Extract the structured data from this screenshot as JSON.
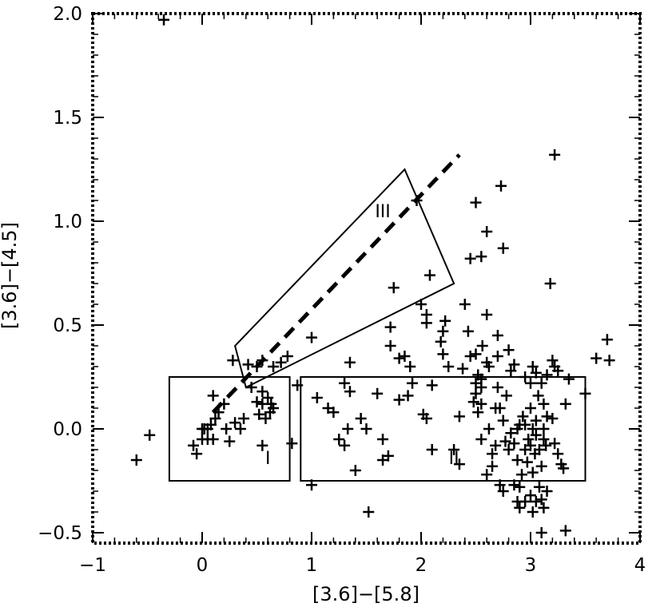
{
  "chart_data": {
    "type": "scatter",
    "title": "",
    "xlabel": "[3.6]−[5.8]",
    "ylabel": "[3.6]−[4.5]",
    "xlim": [
      -1,
      4
    ],
    "ylim": [
      -0.55,
      2.0
    ],
    "x_ticks": [
      -1,
      0,
      1,
      2,
      3,
      4
    ],
    "x_tick_labels": [
      "−1",
      "0",
      "1",
      "2",
      "3",
      "4"
    ],
    "y_ticks": [
      -0.5,
      0.0,
      0.5,
      1.0,
      1.5,
      2.0
    ],
    "y_tick_labels": [
      "−0.5",
      "0.0",
      "0.5",
      "1.0",
      "1.5",
      "2.0"
    ],
    "grid": false,
    "marker": "+",
    "regions": [
      {
        "label": "I",
        "shape": "rectangle",
        "x": [
          -0.3,
          0.8
        ],
        "y": [
          -0.25,
          0.25
        ],
        "label_at": [
          0.6,
          -0.17
        ]
      },
      {
        "label": "II",
        "shape": "rectangle",
        "x": [
          0.9,
          3.5
        ],
        "y": [
          -0.25,
          0.25
        ],
        "label_at": [
          2.3,
          -0.17
        ]
      },
      {
        "label": "III",
        "shape": "polygon",
        "points": [
          [
            0.3,
            0.4
          ],
          [
            0.4,
            0.2
          ],
          [
            2.3,
            0.7
          ],
          [
            1.85,
            1.25
          ]
        ],
        "label_at": [
          1.65,
          1.02
        ]
      }
    ],
    "dashed_line": {
      "x": [
        0.1,
        2.35
      ],
      "y": [
        0.08,
        1.32
      ]
    },
    "points": [
      [
        -0.35,
        1.97
      ],
      [
        -0.6,
        -0.15
      ],
      [
        -0.48,
        -0.03
      ],
      [
        -0.08,
        -0.08
      ],
      [
        -0.05,
        -0.12
      ],
      [
        0.0,
        -0.05
      ],
      [
        0.02,
        0.0
      ],
      [
        0.05,
        -0.05
      ],
      [
        0.08,
        0.02
      ],
      [
        0.0,
        0.0
      ],
      [
        0.05,
        0.0
      ],
      [
        0.1,
        -0.05
      ],
      [
        0.12,
        0.05
      ],
      [
        0.1,
        0.16
      ],
      [
        0.15,
        0.08
      ],
      [
        0.2,
        0.12
      ],
      [
        0.25,
        -0.06
      ],
      [
        0.22,
        0.0
      ],
      [
        0.28,
        0.33
      ],
      [
        0.3,
        0.03
      ],
      [
        0.35,
        0.0
      ],
      [
        0.38,
        0.05
      ],
      [
        0.42,
        0.31
      ],
      [
        0.45,
        0.2
      ],
      [
        0.5,
        0.13
      ],
      [
        0.55,
        0.18
      ],
      [
        0.55,
        0.12
      ],
      [
        0.6,
        0.15
      ],
      [
        0.62,
        0.08
      ],
      [
        0.65,
        0.1
      ],
      [
        0.58,
        0.05
      ],
      [
        0.63,
        0.12
      ],
      [
        0.52,
        0.07
      ],
      [
        0.55,
        -0.08
      ],
      [
        0.65,
        0.3
      ],
      [
        0.72,
        0.32
      ],
      [
        0.78,
        0.35
      ],
      [
        0.82,
        -0.07
      ],
      [
        0.87,
        0.21
      ],
      [
        0.5,
        0.3
      ],
      [
        0.55,
        0.33
      ],
      [
        1.0,
        0.44
      ],
      [
        1.05,
        0.15
      ],
      [
        1.0,
        -0.27
      ],
      [
        1.15,
        0.1
      ],
      [
        1.2,
        0.08
      ],
      [
        1.25,
        -0.05
      ],
      [
        1.3,
        -0.08
      ],
      [
        1.3,
        0.22
      ],
      [
        1.35,
        0.32
      ],
      [
        1.33,
        0.0
      ],
      [
        1.4,
        -0.2
      ],
      [
        1.45,
        0.05
      ],
      [
        1.5,
        0.0
      ],
      [
        1.52,
        -0.4
      ],
      [
        1.35,
        0.18
      ],
      [
        1.6,
        0.17
      ],
      [
        1.65,
        -0.05
      ],
      [
        1.65,
        -0.15
      ],
      [
        1.7,
        -0.13
      ],
      [
        1.72,
        0.49
      ],
      [
        1.72,
        0.4
      ],
      [
        1.75,
        0.68
      ],
      [
        1.8,
        0.14
      ],
      [
        1.8,
        0.34
      ],
      [
        1.85,
        0.35
      ],
      [
        1.88,
        0.16
      ],
      [
        1.9,
        0.3
      ],
      [
        1.92,
        0.22
      ],
      [
        2.02,
        0.07
      ],
      [
        2.0,
        0.6
      ],
      [
        2.05,
        0.05
      ],
      [
        2.08,
        0.74
      ],
      [
        2.05,
        0.55
      ],
      [
        2.1,
        -0.1
      ],
      [
        2.1,
        0.21
      ],
      [
        1.96,
        1.1
      ],
      [
        2.05,
        0.51
      ],
      [
        2.2,
        0.47
      ],
      [
        2.2,
        0.36
      ],
      [
        2.18,
        0.42
      ],
      [
        2.22,
        0.52
      ],
      [
        2.25,
        0.3
      ],
      [
        2.3,
        -0.1
      ],
      [
        2.35,
        -0.17
      ],
      [
        2.35,
        0.06
      ],
      [
        2.38,
        0.29
      ],
      [
        2.43,
        0.47
      ],
      [
        2.45,
        0.82
      ],
      [
        2.48,
        0.13
      ],
      [
        2.5,
        0.17
      ],
      [
        2.5,
        0.22
      ],
      [
        2.52,
        0.08
      ],
      [
        2.55,
        0.24
      ],
      [
        2.56,
        0.4
      ],
      [
        2.5,
        0.36
      ],
      [
        2.52,
        0.26
      ],
      [
        2.55,
        -0.05
      ],
      [
        2.6,
        0.32
      ],
      [
        2.62,
        0.3
      ],
      [
        2.6,
        0.95
      ],
      [
        2.5,
        1.09
      ],
      [
        2.55,
        0.83
      ],
      [
        2.65,
        -0.12
      ],
      [
        2.68,
        0.1
      ],
      [
        2.7,
        0.35
      ],
      [
        2.7,
        0.45
      ],
      [
        2.72,
        0.1
      ],
      [
        2.75,
        0.04
      ],
      [
        2.78,
        0.16
      ],
      [
        2.8,
        0.38
      ],
      [
        2.82,
        0.28
      ],
      [
        2.85,
        0.31
      ],
      [
        2.73,
        1.17
      ],
      [
        2.75,
        0.87
      ],
      [
        2.7,
        0.2
      ],
      [
        2.72,
        -0.27
      ],
      [
        2.75,
        -0.3
      ],
      [
        2.77,
        -0.06
      ],
      [
        2.8,
        -0.1
      ],
      [
        2.82,
        -0.02
      ],
      [
        2.85,
        -0.07
      ],
      [
        2.88,
        0.0
      ],
      [
        2.88,
        -0.15
      ],
      [
        2.9,
        0.02
      ],
      [
        2.85,
        -0.27
      ],
      [
        2.88,
        -0.35
      ],
      [
        2.9,
        -0.28
      ],
      [
        2.92,
        -0.22
      ],
      [
        2.93,
        0.06
      ],
      [
        2.95,
        0.02
      ],
      [
        2.95,
        -0.1
      ],
      [
        2.97,
        -0.16
      ],
      [
        2.98,
        -0.05
      ],
      [
        3.0,
        0.1
      ],
      [
        3.0,
        -0.08
      ],
      [
        3.02,
        0.0
      ],
      [
        3.02,
        -0.21
      ],
      [
        3.04,
        -0.12
      ],
      [
        3.05,
        -0.03
      ],
      [
        3.05,
        0.04
      ],
      [
        3.07,
        0.16
      ],
      [
        3.08,
        -0.1
      ],
      [
        3.1,
        -0.18
      ],
      [
        3.12,
        -0.05
      ],
      [
        3.12,
        0.0
      ],
      [
        3.14,
        -0.08
      ],
      [
        3.15,
        -0.3
      ],
      [
        3.15,
        0.06
      ],
      [
        2.9,
        -0.38
      ],
      [
        2.95,
        -0.35
      ],
      [
        3.0,
        -0.32
      ],
      [
        3.02,
        -0.4
      ],
      [
        3.05,
        -0.35
      ],
      [
        3.08,
        -0.28
      ],
      [
        3.1,
        -0.34
      ],
      [
        3.12,
        -0.38
      ],
      [
        2.95,
        0.25
      ],
      [
        3.0,
        0.22
      ],
      [
        3.02,
        0.3
      ],
      [
        3.05,
        0.27
      ],
      [
        3.1,
        0.22
      ],
      [
        3.12,
        0.12
      ],
      [
        3.15,
        0.26
      ],
      [
        3.18,
        0.7
      ],
      [
        3.2,
        0.33
      ],
      [
        3.22,
        0.3
      ],
      [
        3.25,
        0.28
      ],
      [
        3.25,
        -0.12
      ],
      [
        3.28,
        -0.17
      ],
      [
        3.3,
        -0.19
      ],
      [
        3.32,
        -0.49
      ],
      [
        3.22,
        1.32
      ],
      [
        3.2,
        0.05
      ],
      [
        3.22,
        -0.07
      ],
      [
        3.1,
        -0.5
      ],
      [
        3.32,
        0.12
      ],
      [
        3.35,
        0.24
      ],
      [
        3.5,
        0.17
      ],
      [
        3.6,
        0.34
      ],
      [
        3.7,
        0.43
      ],
      [
        3.72,
        0.33
      ],
      [
        2.6,
        -0.22
      ],
      [
        2.65,
        -0.18
      ],
      [
        2.55,
        0.12
      ],
      [
        2.45,
        0.35
      ],
      [
        2.4,
        0.6
      ],
      [
        2.6,
        0.55
      ],
      [
        2.55,
        0.2
      ],
      [
        2.62,
        0.0
      ],
      [
        2.68,
        -0.08
      ]
    ]
  }
}
